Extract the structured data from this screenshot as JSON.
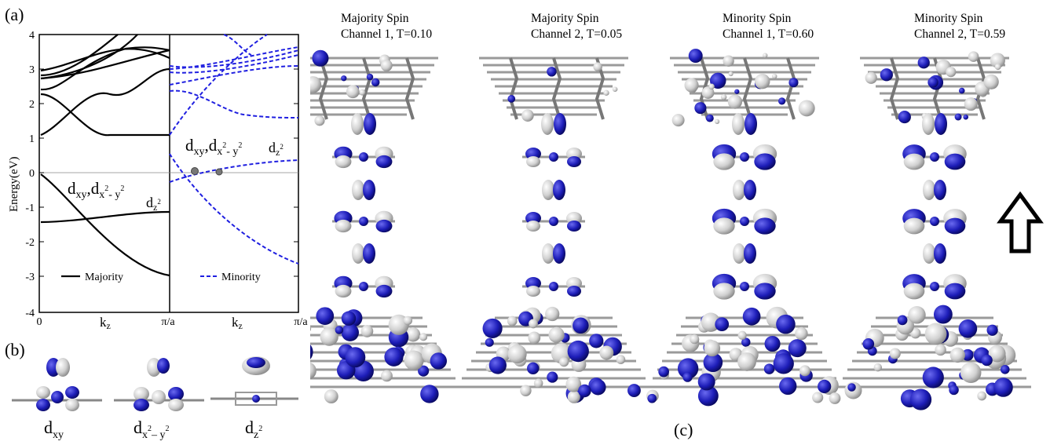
{
  "panels": {
    "a_label": "(a)",
    "b_label": "(b)",
    "c_label": "(c)"
  },
  "band_plot": {
    "ylabel": "Energy(eV)",
    "yticks": [
      "4",
      "3",
      "2",
      "1",
      "0",
      "-1",
      "-2",
      "-3",
      "-4"
    ],
    "xticks_left": [
      "0",
      "π/a"
    ],
    "xticks_right": [
      "π/a"
    ],
    "xlabel_left": "k",
    "xlabel_left_sub": "z",
    "xlabel_right": "k",
    "xlabel_right_sub": "z",
    "legend_majority": "Majority",
    "legend_minority": "Minority",
    "colors": {
      "majority": "#000000",
      "minority": "#1f1fe0"
    }
  },
  "annotations": {
    "left_dxy": "d",
    "left_dxy_sub": "xy",
    "left_dx2y2": "d",
    "left_dx2y2_sub": "x",
    "left_dx2y2_sup": "2",
    "left_dx2y2_sub2": "- y",
    "left_dx2y2_sup2": "2",
    "left_dz2": "d",
    "left_dz2_sub": "z",
    "left_dz2_sup": "2",
    "right_dxy": "d",
    "right_dxy_sub": "xy",
    "right_dx2y2": "d",
    "right_dx2y2_sub": "x",
    "right_dx2y2_sup": "2",
    "right_dx2y2_sub2": "- y",
    "right_dx2y2_sup2": "2",
    "right_dz2": "d",
    "right_dz2_sub": "z",
    "right_dz2_sup": "2"
  },
  "orbitals": [
    {
      "d": "d",
      "sub": "xy"
    },
    {
      "d": "d",
      "sub": "x",
      "sup": "2",
      "sub2": "– y",
      "sup2": "2"
    },
    {
      "d": "d",
      "sub": "z",
      "sup": "2"
    }
  ],
  "channels": [
    {
      "line1": "Majority Spin",
      "line2": "Channel 1, T=0.10"
    },
    {
      "line1": "Majority Spin",
      "line2": "Channel 2, T=0.05"
    },
    {
      "line1": "Minority Spin",
      "line2": "Channel 1, T=0.60"
    },
    {
      "line1": "Minority Spin",
      "line2": "Channel 2, T=0.59"
    }
  ],
  "isosurface_colors": {
    "positive": "#1d1db8",
    "negative": "#d4d4d4"
  }
}
